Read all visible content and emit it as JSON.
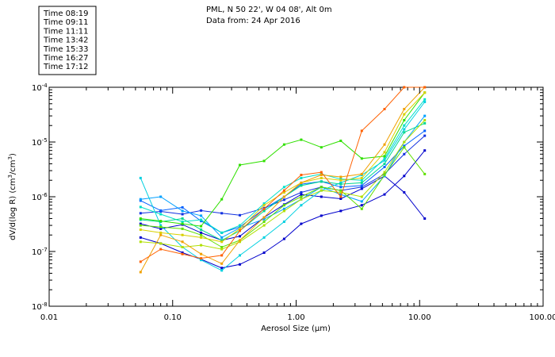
{
  "header": {
    "line1": "PML, N 50 22', W 04 08', Alt 0m",
    "line2": "Data from: 24 Apr 2016"
  },
  "legend": [
    {
      "label": "Time 08:19",
      "color": "#0000cc"
    },
    {
      "label": "Time 09:11",
      "color": "#0090ff"
    },
    {
      "label": "Time 11:11",
      "color": "#00d0e0"
    },
    {
      "label": "Time 13:42",
      "color": "#00d890"
    },
    {
      "label": "Time 15:33",
      "color": "#30e000"
    },
    {
      "label": "Time 16:27",
      "color": "#b0e000"
    },
    {
      "label": "Time 17:12",
      "color": "#f0a000"
    }
  ],
  "chart_data": {
    "type": "line",
    "xlabel": "Aerosol Size (μm)",
    "ylabel_main": "dV/d(log R) (cm",
    "ylabel_sup1": "3",
    "ylabel_mid": "/cm",
    "ylabel_sup2": "3",
    "ylabel_end": ")",
    "x_scale": "log",
    "y_scale": "log",
    "xlim": [
      0.01,
      100
    ],
    "ylim": [
      1e-08,
      0.0001
    ],
    "x_ticks": [
      {
        "value": 0.01,
        "label": "0.01"
      },
      {
        "value": 0.1,
        "label": "0.10"
      },
      {
        "value": 1,
        "label": "1.00"
      },
      {
        "value": 10,
        "label": "10.00"
      },
      {
        "value": 100,
        "label": "100.00"
      }
    ],
    "y_ticks": [
      {
        "value": 1e-08,
        "mant": "10",
        "exp": "-8"
      },
      {
        "value": 1e-07,
        "mant": "10",
        "exp": "-7"
      },
      {
        "value": 1e-06,
        "mant": "10",
        "exp": "-6"
      },
      {
        "value": 1e-05,
        "mant": "10",
        "exp": "-5"
      },
      {
        "value": 0.0001,
        "mant": "10",
        "exp": "-4"
      }
    ],
    "x": [
      0.055,
      0.08,
      0.12,
      0.17,
      0.25,
      0.35,
      0.55,
      0.8,
      1.1,
      1.6,
      2.3,
      3.4,
      5.2,
      7.5,
      11.0
    ],
    "series": [
      {
        "color": "#0000cc",
        "values": [
          3.2e-07,
          2.6e-07,
          3.1e-07,
          2.2e-07,
          1.6e-07,
          1.9e-07,
          4.2e-07,
          7.2e-07,
          1.1e-06,
          1e-06,
          9.2e-07,
          1.4e-06,
          2.4e-06,
          1.2e-06,
          4e-07
        ]
      },
      {
        "color": "#0000cc",
        "values": [
          1.8e-07,
          1.4e-07,
          9.5e-08,
          7.2e-08,
          5e-08,
          5.8e-08,
          9.5e-08,
          1.7e-07,
          3.2e-07,
          4.5e-07,
          5.5e-07,
          7e-07,
          1.1e-06,
          2.4e-06,
          7e-06
        ]
      },
      {
        "color": "#1030e0",
        "values": [
          5e-07,
          5.4e-07,
          4.8e-07,
          5.6e-07,
          5e-07,
          4.6e-07,
          6.2e-07,
          8.8e-07,
          1.2e-06,
          1.5e-06,
          1.3e-06,
          1.5e-06,
          2.6e-06,
          6e-06,
          1.3e-05
        ]
      },
      {
        "color": "#0060ff",
        "values": [
          8.5e-07,
          5.6e-07,
          6.4e-07,
          3.6e-07,
          2.2e-07,
          2.8e-07,
          6e-07,
          1e-06,
          1.7e-06,
          1.9e-06,
          1.5e-06,
          1.6e-06,
          3.5e-06,
          8.5e-06,
          1.6e-05
        ]
      },
      {
        "color": "#00a0ff",
        "values": [
          9e-07,
          1e-06,
          5.5e-07,
          4.5e-07,
          1.8e-07,
          2.7e-07,
          3.9e-07,
          6e-07,
          9e-07,
          1.5e-06,
          1.1e-06,
          8.2e-07,
          2.4e-06,
          1e-05,
          3e-05
        ]
      },
      {
        "color": "#00d0e0",
        "values": [
          2.2e-06,
          3e-07,
          1.2e-07,
          7e-08,
          4.5e-08,
          8.5e-08,
          1.8e-07,
          3.5e-07,
          7e-07,
          1.3e-06,
          1.8e-06,
          2.5e-06,
          4.6e-06,
          1.7e-05,
          5.4e-05
        ]
      },
      {
        "color": "#00e0c8",
        "values": [
          6.5e-07,
          4.8e-07,
          3.5e-07,
          3.8e-07,
          2.2e-07,
          3e-07,
          7.5e-07,
          1.5e-06,
          2.2e-06,
          2.6e-06,
          2.1e-06,
          2e-06,
          5e-06,
          2e-05,
          6e-05
        ]
      },
      {
        "color": "#00d890",
        "values": [
          3.8e-07,
          3.5e-07,
          4e-07,
          2.5e-07,
          1.6e-07,
          2.4e-07,
          5.5e-07,
          1e-06,
          1.6e-06,
          1.9e-06,
          1.7e-06,
          1.8e-06,
          4e-06,
          1.5e-05,
          2.2e-05
        ]
      },
      {
        "color": "#30e000",
        "values": [
          4e-07,
          3.6e-07,
          3.2e-07,
          2.9e-07,
          9e-07,
          3.8e-06,
          4.5e-06,
          9e-06,
          1.1e-05,
          8e-06,
          1.05e-05,
          5e-06,
          5.5e-06,
          2.5e-05,
          8e-05
        ]
      },
      {
        "color": "#60e000",
        "values": [
          3e-07,
          2.8e-07,
          2.6e-07,
          2e-07,
          1.2e-07,
          1.6e-07,
          3.5e-07,
          7e-07,
          1e-06,
          1.5e-06,
          1.3e-06,
          6e-07,
          2.5e-06,
          8e-06,
          2.6e-06
        ]
      },
      {
        "color": "#b0e000",
        "values": [
          1.5e-07,
          1.4e-07,
          1.2e-07,
          1.3e-07,
          1.1e-07,
          1.5e-07,
          3e-07,
          5.5e-07,
          9e-07,
          1.3e-06,
          1.2e-06,
          1e-06,
          2.8e-06,
          1e-05,
          2.5e-05
        ]
      },
      {
        "color": "#d8d000",
        "values": [
          2.5e-07,
          2.2e-07,
          2e-07,
          1.8e-07,
          1.5e-07,
          2.6e-07,
          7e-07,
          1.2e-06,
          1.8e-06,
          2.2e-06,
          2e-06,
          2.2e-06,
          6.5e-06,
          3.2e-05,
          8e-05
        ]
      },
      {
        "color": "#f0a000",
        "values": [
          4.2e-08,
          2e-07,
          1.5e-07,
          9e-08,
          6e-08,
          1.6e-07,
          4.2e-07,
          1e-06,
          1.8e-06,
          2.5e-06,
          2.3e-06,
          2.6e-06,
          9e-06,
          4e-05,
          0.0001
        ]
      },
      {
        "color": "#ff6000",
        "values": [
          6.5e-08,
          1.1e-07,
          9e-08,
          7.5e-08,
          8.5e-08,
          2.4e-07,
          6e-07,
          1.3e-06,
          2.5e-06,
          2.8e-06,
          1e-06,
          1.6e-05,
          4e-05,
          0.0001,
          0.0001
        ]
      }
    ]
  }
}
